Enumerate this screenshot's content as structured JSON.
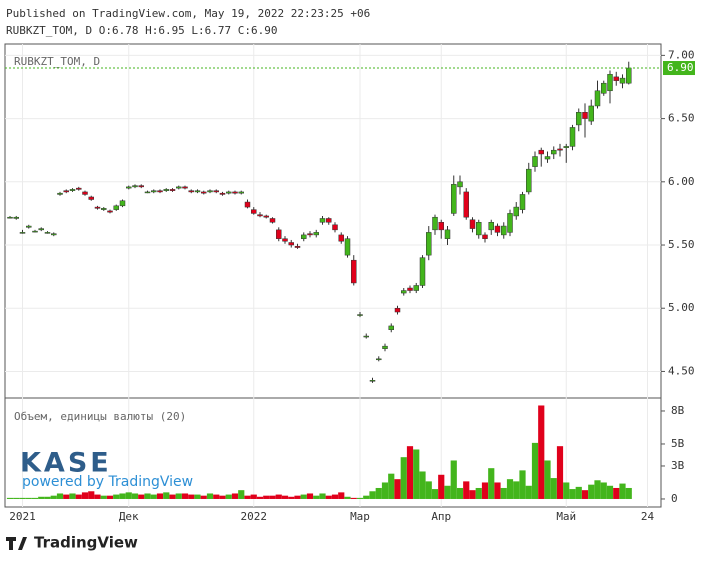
{
  "header": {
    "published": "Published on TradingView.com, May 19, 2022 22:23:25 +06",
    "ohlc": "RUBKZT_TOM, D O:6.78 H:6.95 L:6.77 C:6.90"
  },
  "branding": {
    "logo": "KASE",
    "powered": "powered by TradingView",
    "footer": "TradingView"
  },
  "chart_data": {
    "type": "candlestick",
    "symbol_label": "RUBKZT_TOM, D",
    "up_color": "#43b51c",
    "down_color": "#e0001b",
    "grid": true,
    "categories": [
      null,
      null,
      "2021",
      null,
      null,
      null,
      null,
      null,
      null,
      null,
      null,
      null,
      null,
      null,
      null,
      null,
      null,
      null,
      null,
      "Дек",
      null,
      null,
      null,
      null,
      null,
      null,
      null,
      null,
      null,
      null,
      null,
      null,
      null,
      null,
      null,
      null,
      null,
      null,
      null,
      "2022",
      null,
      null,
      null,
      null,
      null,
      null,
      null,
      null,
      null,
      null,
      null,
      null,
      null,
      null,
      null,
      null,
      "Мар",
      null,
      null,
      null,
      null,
      null,
      null,
      null,
      null,
      null,
      null,
      null,
      null,
      "Апр",
      null,
      null,
      null,
      null,
      null,
      null,
      null,
      null,
      null,
      null,
      null,
      null,
      null,
      null,
      null,
      null,
      null,
      null,
      null,
      "Май",
      null,
      null,
      null,
      null,
      null,
      null,
      null,
      null,
      null,
      null,
      null,
      null,
      "24"
    ],
    "open": [
      5.72,
      5.71,
      5.6,
      5.64,
      5.61,
      5.62,
      5.6,
      5.58,
      5.9,
      5.93,
      5.93,
      5.95,
      5.92,
      5.88,
      5.8,
      5.78,
      5.77,
      5.78,
      5.81,
      5.95,
      5.96,
      5.97,
      5.92,
      5.92,
      5.93,
      5.93,
      5.94,
      5.95,
      5.96,
      5.93,
      5.92,
      5.92,
      5.92,
      5.93,
      5.91,
      5.91,
      5.92,
      5.91,
      5.84,
      5.78,
      5.74,
      5.73,
      5.71,
      5.62,
      5.55,
      5.52,
      5.49,
      5.55,
      5.59,
      5.58,
      5.68,
      5.71,
      5.66,
      5.58,
      5.42,
      5.38,
      4.95,
      4.78,
      4.43,
      4.6,
      4.68,
      4.83,
      5.0,
      5.12,
      5.16,
      5.14,
      5.18,
      5.42,
      5.62,
      5.68,
      5.55,
      5.75,
      5.96,
      5.92,
      5.7,
      5.58,
      5.58,
      5.62,
      5.65,
      5.58,
      5.6,
      5.73,
      5.78,
      5.92,
      6.12,
      6.25,
      6.18,
      6.22,
      6.26,
      6.27,
      6.28,
      6.45,
      6.55,
      6.48,
      6.6,
      6.7,
      6.72,
      6.83,
      6.78,
      6.78,
      null,
      null,
      null
    ],
    "high": [
      5.73,
      5.73,
      5.62,
      5.66,
      5.62,
      5.64,
      5.61,
      5.6,
      5.92,
      5.94,
      5.95,
      5.96,
      5.93,
      5.89,
      5.81,
      5.8,
      5.78,
      5.82,
      5.86,
      5.97,
      5.98,
      5.98,
      5.93,
      5.94,
      5.94,
      5.95,
      5.95,
      5.97,
      5.97,
      5.94,
      5.94,
      5.93,
      5.94,
      5.94,
      5.92,
      5.93,
      5.93,
      5.93,
      5.86,
      5.8,
      5.76,
      5.74,
      5.72,
      5.64,
      5.57,
      5.54,
      5.51,
      5.6,
      5.61,
      5.62,
      5.73,
      5.72,
      5.68,
      5.6,
      5.57,
      5.42,
      4.97,
      4.8,
      4.45,
      4.62,
      4.72,
      4.88,
      5.02,
      5.16,
      5.18,
      5.2,
      5.42,
      5.65,
      5.74,
      5.7,
      5.65,
      6.05,
      6.05,
      5.95,
      5.72,
      5.7,
      5.6,
      5.7,
      5.67,
      5.68,
      5.78,
      5.84,
      5.92,
      6.15,
      6.24,
      6.27,
      6.24,
      6.28,
      6.3,
      6.3,
      6.45,
      6.58,
      6.62,
      6.65,
      6.8,
      6.8,
      6.88,
      6.87,
      6.85,
      6.95,
      null,
      null,
      null
    ],
    "low": [
      5.71,
      5.7,
      5.59,
      5.63,
      5.6,
      5.61,
      5.59,
      5.57,
      5.89,
      5.91,
      5.92,
      5.93,
      5.89,
      5.85,
      5.78,
      5.77,
      5.75,
      5.77,
      5.8,
      5.94,
      5.95,
      5.95,
      5.91,
      5.91,
      5.91,
      5.92,
      5.92,
      5.94,
      5.94,
      5.91,
      5.91,
      5.9,
      5.91,
      5.91,
      5.89,
      5.9,
      5.9,
      5.9,
      5.79,
      5.74,
      5.72,
      5.71,
      5.67,
      5.53,
      5.51,
      5.48,
      5.47,
      5.53,
      5.56,
      5.56,
      5.66,
      5.66,
      5.6,
      5.51,
      5.4,
      5.18,
      4.93,
      4.76,
      4.41,
      4.58,
      4.66,
      4.81,
      4.95,
      5.1,
      5.12,
      5.12,
      5.16,
      5.38,
      5.58,
      5.55,
      5.5,
      5.73,
      5.9,
      5.7,
      5.6,
      5.55,
      5.52,
      5.58,
      5.57,
      5.55,
      5.57,
      5.7,
      5.75,
      5.9,
      6.08,
      6.12,
      6.15,
      6.18,
      6.2,
      6.15,
      6.25,
      6.4,
      6.35,
      6.45,
      6.58,
      6.68,
      6.62,
      6.76,
      6.74,
      6.77,
      null,
      null,
      null
    ],
    "close": [
      5.72,
      5.72,
      5.6,
      5.65,
      5.61,
      5.63,
      5.6,
      5.59,
      5.91,
      5.92,
      5.94,
      5.94,
      5.9,
      5.86,
      5.79,
      5.79,
      5.76,
      5.81,
      5.85,
      5.96,
      5.97,
      5.96,
      5.92,
      5.93,
      5.92,
      5.94,
      5.93,
      5.96,
      5.95,
      5.92,
      5.93,
      5.91,
      5.93,
      5.92,
      5.9,
      5.92,
      5.91,
      5.92,
      5.8,
      5.75,
      5.73,
      5.72,
      5.68,
      5.55,
      5.53,
      5.5,
      5.48,
      5.58,
      5.58,
      5.6,
      5.71,
      5.68,
      5.62,
      5.53,
      5.55,
      5.2,
      4.95,
      4.78,
      4.43,
      4.6,
      4.7,
      4.86,
      4.97,
      5.14,
      5.14,
      5.18,
      5.4,
      5.6,
      5.72,
      5.62,
      5.62,
      5.98,
      6.0,
      5.72,
      5.63,
      5.68,
      5.55,
      5.68,
      5.6,
      5.65,
      5.75,
      5.8,
      5.9,
      6.1,
      6.2,
      6.22,
      6.2,
      6.25,
      6.25,
      6.28,
      6.43,
      6.55,
      6.5,
      6.6,
      6.72,
      6.78,
      6.85,
      6.8,
      6.82,
      6.9,
      null,
      null,
      null
    ],
    "ylim": [
      4.29,
      7.09
    ],
    "yticks": [
      {
        "value": 4.5,
        "label": "4.50"
      },
      {
        "value": 5,
        "label": "5.00"
      },
      {
        "value": 5.5,
        "label": "5.50"
      },
      {
        "value": 6,
        "label": "6.00"
      },
      {
        "value": 6.5,
        "label": "6.50"
      },
      {
        "value": 7,
        "label": "7.00"
      }
    ],
    "last_price": {
      "value": 6.9,
      "label": "6.90"
    },
    "volume": {
      "title": "Объем, единицы валюты (20)",
      "values": [
        0.1,
        0.1,
        0.1,
        0.1,
        0.1,
        0.2,
        0.2,
        0.3,
        0.5,
        0.4,
        0.5,
        0.4,
        0.6,
        0.7,
        0.4,
        0.3,
        0.3,
        0.4,
        0.5,
        0.6,
        0.5,
        0.4,
        0.5,
        0.4,
        0.5,
        0.6,
        0.4,
        0.5,
        0.5,
        0.4,
        0.4,
        0.3,
        0.5,
        0.4,
        0.3,
        0.4,
        0.5,
        0.8,
        0.3,
        0.4,
        0.2,
        0.3,
        0.3,
        0.4,
        0.3,
        0.2,
        0.3,
        0.4,
        0.5,
        0.3,
        0.5,
        0.3,
        0.4,
        0.6,
        0.2,
        0.1,
        0.1,
        0.3,
        0.7,
        1.0,
        1.5,
        2.3,
        1.8,
        3.8,
        4.8,
        4.5,
        2.5,
        1.6,
        0.9,
        2.2,
        1.2,
        3.5,
        1.0,
        1.6,
        0.8,
        1.0,
        1.5,
        2.8,
        1.5,
        1.0,
        1.8,
        1.6,
        2.6,
        1.2,
        5.1,
        8.5,
        3.5,
        1.9,
        4.8,
        1.5,
        0.9,
        1.1,
        0.8,
        1.3,
        1.7,
        1.5,
        1.2,
        1.0,
        1.4,
        1.0,
        null,
        null,
        null
      ],
      "ylim": [
        -0.73,
        9.18
      ],
      "yticks": [
        0,
        {
          "value": 3,
          "label": "3B"
        },
        {
          "value": 5,
          "label": "5B"
        },
        {
          "value": 8,
          "label": "8B"
        }
      ]
    }
  }
}
